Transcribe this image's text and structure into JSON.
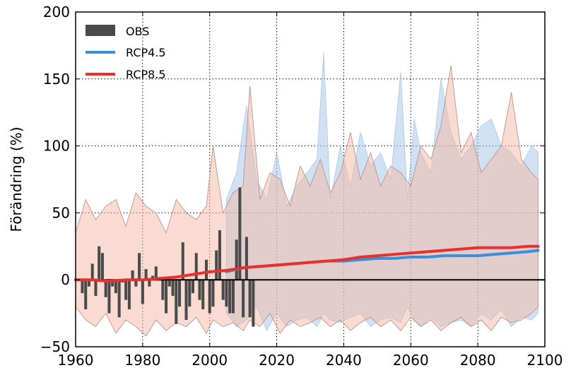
{
  "chart_data": {
    "type": "line",
    "title": "",
    "xlabel": "",
    "ylabel": "Förändring (%)",
    "xlim": [
      1960,
      2100
    ],
    "ylim": [
      -50,
      200
    ],
    "xticks": [
      1960,
      1980,
      2000,
      2020,
      2040,
      2060,
      2080,
      2100
    ],
    "yticks": [
      -50,
      0,
      50,
      100,
      150,
      200
    ],
    "xtick_labels": [
      "1960",
      "1980",
      "2000",
      "2020",
      "2040",
      "2060",
      "2080",
      "2100"
    ],
    "ytick_labels": [
      "−50",
      "0",
      "50",
      "100",
      "150",
      "200"
    ],
    "grid": true,
    "legend_position": "top-left",
    "legend": [
      "OBS",
      "RCP4.5",
      "RCP8.5"
    ],
    "colors": {
      "obs": "#4a4a4a",
      "rcp45": "#3a8fd9",
      "rcp85": "#e8302c",
      "rcp45_band": "#a9c9eb",
      "rcp85_band": "#f4b8a3",
      "overlap_band": "#c8a8a0"
    },
    "obs": {
      "name": "OBS",
      "x": [
        1960,
        1961,
        1962,
        1963,
        1964,
        1965,
        1966,
        1967,
        1968,
        1969,
        1970,
        1971,
        1972,
        1973,
        1974,
        1975,
        1976,
        1977,
        1978,
        1979,
        1980,
        1981,
        1982,
        1983,
        1984,
        1985,
        1986,
        1987,
        1988,
        1989,
        1990,
        1991,
        1992,
        1993,
        1994,
        1995,
        1996,
        1997,
        1998,
        1999,
        2000,
        2001,
        2002,
        2003,
        2004,
        2005,
        2006,
        2007,
        2008,
        2009,
        2010,
        2011,
        2012,
        2013
      ],
      "values": [
        0,
        1,
        -10,
        -22,
        -5,
        12,
        -12,
        25,
        20,
        -13,
        -25,
        -5,
        -10,
        -28,
        -2,
        -15,
        -22,
        7,
        -5,
        20,
        -18,
        8,
        -5,
        3,
        10,
        0,
        -15,
        -25,
        -5,
        -12,
        -33,
        -20,
        28,
        -30,
        -20,
        -10,
        20,
        -15,
        -22,
        15,
        -25,
        -20,
        22,
        37,
        -15,
        -20,
        -25,
        -25,
        30,
        69,
        -28,
        32,
        -28,
        -35
      ]
    },
    "rcp45": {
      "name": "RCP4.5",
      "x": [
        2005,
        2010,
        2015,
        2020,
        2025,
        2030,
        2035,
        2040,
        2045,
        2050,
        2055,
        2060,
        2065,
        2070,
        2075,
        2080,
        2085,
        2090,
        2095,
        2098
      ],
      "values": [
        6,
        9,
        10,
        11,
        12,
        13,
        14,
        14,
        15,
        16,
        16,
        17,
        17,
        18,
        18,
        18,
        19,
        20,
        21,
        22
      ]
    },
    "rcp85": {
      "name": "RCP8.5",
      "x": [
        1960,
        1965,
        1970,
        1975,
        1980,
        1985,
        1990,
        1995,
        2000,
        2005,
        2010,
        2015,
        2020,
        2025,
        2030,
        2035,
        2040,
        2045,
        2050,
        2055,
        2060,
        2065,
        2070,
        2075,
        2080,
        2085,
        2090,
        2095,
        2098
      ],
      "values": [
        0,
        0,
        -1,
        0,
        0,
        1,
        2,
        4,
        6,
        7,
        9,
        10,
        11,
        12,
        13,
        14,
        15,
        17,
        18,
        19,
        20,
        21,
        22,
        23,
        24,
        24,
        24,
        25,
        25
      ]
    },
    "rcp45_range": {
      "x": [
        2005,
        2008,
        2011,
        2014,
        2017,
        2020,
        2023,
        2026,
        2029,
        2032,
        2034,
        2036,
        2039,
        2042,
        2045,
        2048,
        2051,
        2054,
        2057,
        2059,
        2061,
        2063,
        2066,
        2069,
        2072,
        2075,
        2078,
        2081,
        2084,
        2087,
        2090,
        2093,
        2096,
        2098
      ],
      "upper": [
        60,
        80,
        130,
        75,
        60,
        95,
        55,
        70,
        80,
        90,
        170,
        60,
        100,
        70,
        110,
        85,
        95,
        75,
        155,
        60,
        120,
        95,
        80,
        150,
        110,
        90,
        100,
        115,
        120,
        100,
        95,
        85,
        100,
        95
      ],
      "lower": [
        -25,
        -35,
        -30,
        -20,
        -38,
        -25,
        -35,
        -30,
        -28,
        -35,
        -25,
        -30,
        -32,
        -28,
        -25,
        -35,
        -30,
        -28,
        -32,
        -20,
        -30,
        -35,
        -28,
        -35,
        -32,
        -30,
        -35,
        -25,
        -30,
        -22,
        -35,
        -28,
        -30,
        -25
      ]
    },
    "rcp85_range": {
      "x": [
        1960,
        1963,
        1966,
        1969,
        1972,
        1975,
        1978,
        1981,
        1984,
        1987,
        1990,
        1993,
        1996,
        1999,
        2001,
        2004,
        2007,
        2010,
        2012,
        2015,
        2018,
        2021,
        2024,
        2027,
        2030,
        2033,
        2036,
        2039,
        2042,
        2045,
        2048,
        2051,
        2054,
        2057,
        2060,
        2063,
        2066,
        2069,
        2072,
        2075,
        2078,
        2081,
        2084,
        2087,
        2090,
        2093,
        2096,
        2098
      ],
      "upper": [
        35,
        60,
        45,
        55,
        60,
        40,
        65,
        55,
        50,
        35,
        60,
        50,
        45,
        55,
        100,
        50,
        65,
        70,
        145,
        60,
        80,
        75,
        55,
        85,
        70,
        90,
        65,
        80,
        110,
        75,
        95,
        70,
        85,
        80,
        70,
        100,
        90,
        115,
        160,
        95,
        110,
        80,
        90,
        100,
        140,
        90,
        80,
        75
      ],
      "lower": [
        -20,
        -30,
        -35,
        -25,
        -40,
        -30,
        -35,
        -42,
        -30,
        -38,
        -32,
        -35,
        -28,
        -40,
        -30,
        -35,
        -32,
        -38,
        -30,
        -35,
        -25,
        -40,
        -30,
        -35,
        -32,
        -28,
        -35,
        -30,
        -38,
        -32,
        -28,
        -35,
        -30,
        -38,
        -28,
        -35,
        -30,
        -38,
        -32,
        -28,
        -35,
        -30,
        -38,
        -28,
        -32,
        -30,
        -25,
        -20
      ]
    }
  }
}
